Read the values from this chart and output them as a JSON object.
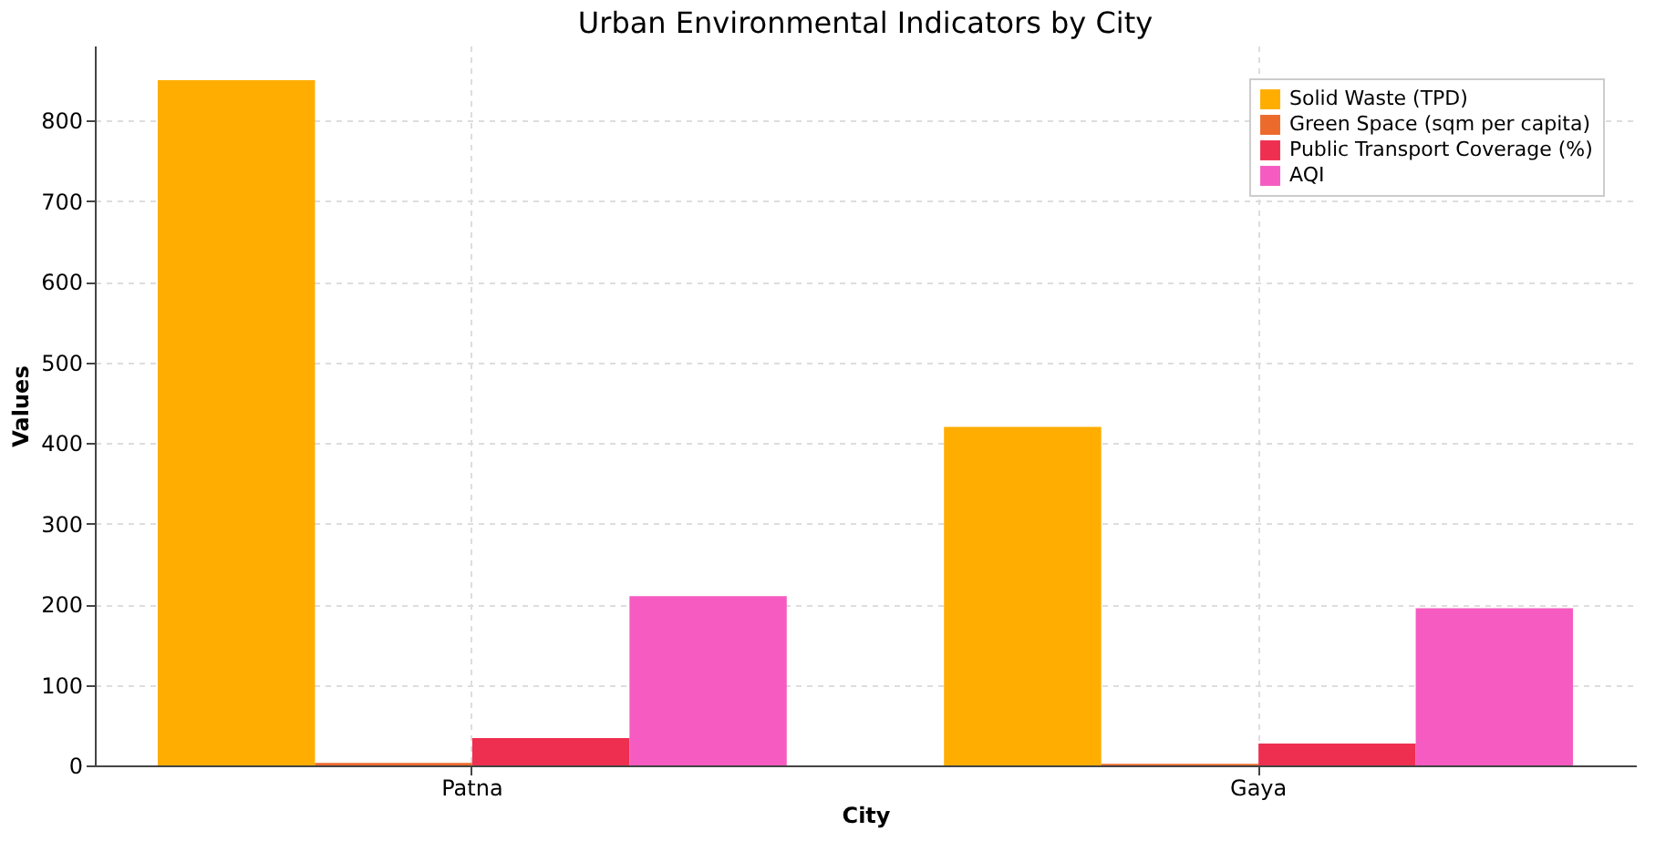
{
  "chart_data": {
    "type": "bar",
    "title": "Urban Environmental Indicators by City",
    "xlabel": "City",
    "ylabel": "Values",
    "categories": [
      "Patna",
      "Gaya"
    ],
    "series": [
      {
        "name": "Solid Waste (TPD)",
        "color": "#ffad00",
        "values": [
          850,
          420
        ]
      },
      {
        "name": "Green Space (sqm per capita)",
        "color": "#ec6a2c",
        "values": [
          3,
          2
        ]
      },
      {
        "name": "Public Transport Coverage (%)",
        "color": "#ef2f50",
        "values": [
          34,
          27
        ]
      },
      {
        "name": "AQI",
        "color": "#f55bc0",
        "values": [
          210,
          195
        ]
      }
    ],
    "ylim": [
      0,
      893
    ],
    "yticks": [
      0,
      100,
      200,
      300,
      400,
      500,
      600,
      700,
      800
    ],
    "grid": true,
    "legend": "top right"
  }
}
